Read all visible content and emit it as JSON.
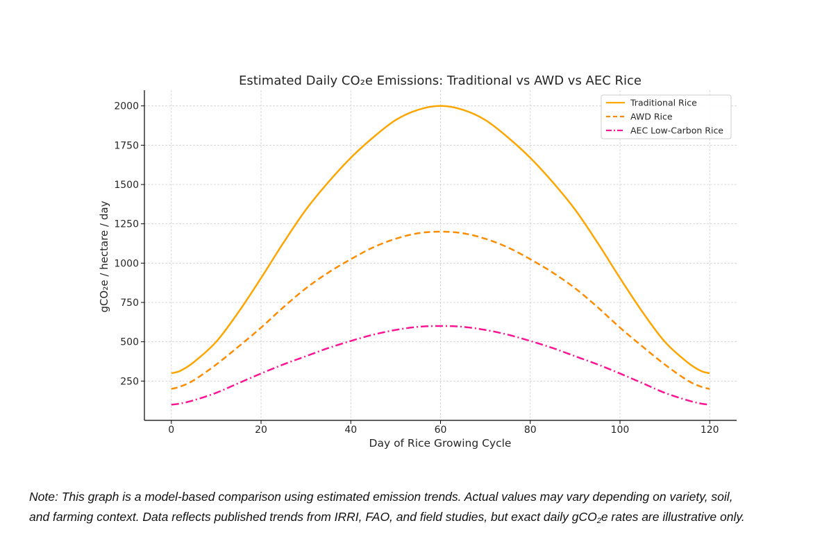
{
  "chart_data": {
    "type": "line",
    "title": "Estimated Daily CO₂e Emissions: Traditional vs AWD vs AEC Rice",
    "xlabel": "Day of Rice Growing Cycle",
    "ylabel": "gCO₂e / hectare / day",
    "xlim": [
      -6,
      126
    ],
    "ylim": [
      0,
      2100
    ],
    "xticks": [
      0,
      20,
      40,
      60,
      80,
      100,
      120
    ],
    "yticks": [
      250,
      500,
      750,
      1000,
      1250,
      1500,
      1750,
      2000
    ],
    "grid": true,
    "legend_position": "top-right",
    "series": [
      {
        "name": "Traditional Rice",
        "color": "#FFA500",
        "style": "solid",
        "x": [
          0,
          2,
          5,
          10,
          15,
          20,
          25,
          30,
          35,
          40,
          45,
          50,
          55,
          60,
          65,
          70,
          75,
          80,
          85,
          90,
          95,
          100,
          105,
          110,
          115,
          118,
          120
        ],
        "values": [
          300,
          315,
          370,
          500,
          690,
          905,
          1130,
          1340,
          1515,
          1670,
          1800,
          1910,
          1975,
          2000,
          1975,
          1910,
          1800,
          1670,
          1515,
          1340,
          1130,
          905,
          690,
          500,
          370,
          315,
          300
        ]
      },
      {
        "name": "AWD Rice",
        "color": "#FF8C00",
        "style": "dashed",
        "x": [
          0,
          2,
          5,
          10,
          15,
          20,
          25,
          30,
          35,
          40,
          45,
          50,
          55,
          60,
          65,
          70,
          75,
          80,
          85,
          90,
          95,
          100,
          105,
          110,
          115,
          118,
          120
        ],
        "values": [
          200,
          215,
          255,
          355,
          470,
          590,
          720,
          840,
          940,
          1025,
          1100,
          1155,
          1190,
          1200,
          1190,
          1155,
          1100,
          1025,
          940,
          840,
          720,
          590,
          470,
          355,
          255,
          215,
          200
        ]
      },
      {
        "name": "AEC Low-Carbon Rice",
        "color": "#FF1493",
        "style": "dashdot",
        "x": [
          0,
          2,
          5,
          10,
          15,
          20,
          25,
          30,
          35,
          40,
          45,
          50,
          55,
          60,
          65,
          70,
          75,
          80,
          85,
          90,
          95,
          100,
          105,
          110,
          115,
          118,
          120
        ],
        "values": [
          100,
          107,
          128,
          175,
          237,
          298,
          356,
          408,
          460,
          505,
          545,
          575,
          595,
          600,
          595,
          575,
          545,
          505,
          460,
          408,
          356,
          298,
          237,
          175,
          128,
          107,
          100
        ]
      }
    ]
  },
  "note": {
    "line1": "Note: This graph is a model-based comparison using estimated emission trends. Actual values may vary depending on variety, soil,",
    "line2_pre": "and farming context. Data reflects published trends from IRRI, FAO, and field studies, but exact daily gCO",
    "line2_sub": "2",
    "line2_post": "e rates are illustrative only."
  }
}
